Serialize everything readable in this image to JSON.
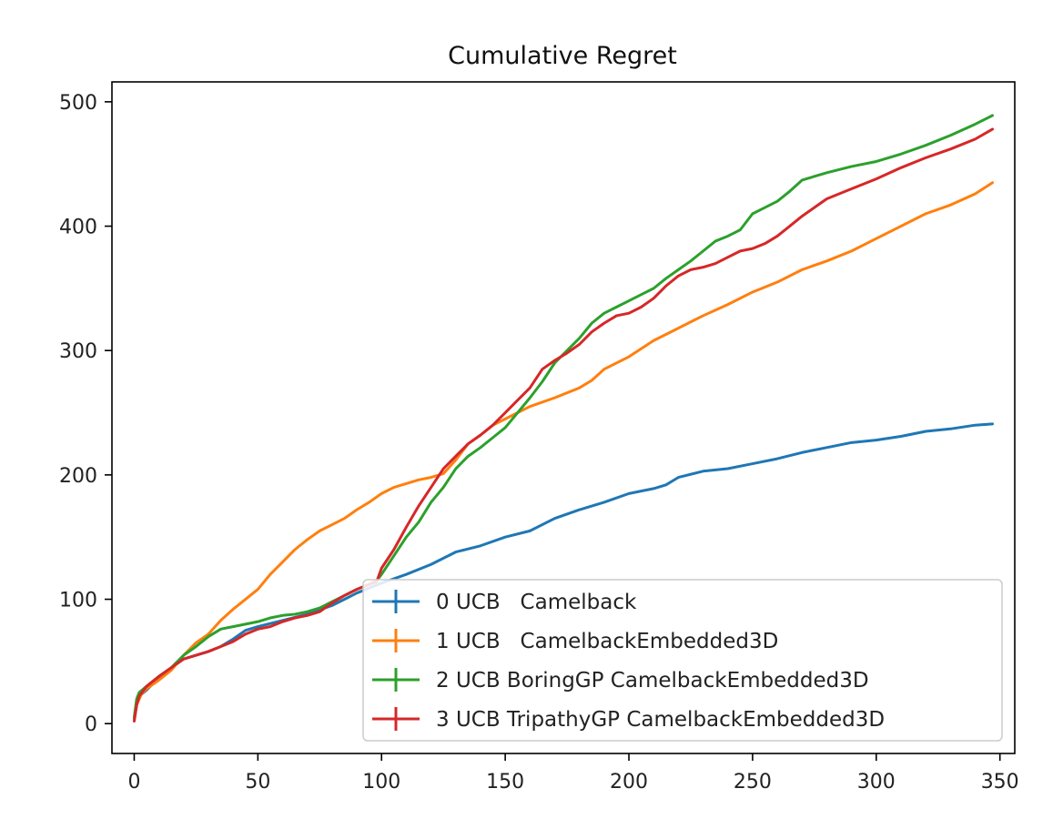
{
  "chart_data": {
    "type": "line",
    "title": "Cumulative Regret",
    "xlabel": "",
    "ylabel": "",
    "xlim": [
      -9,
      356
    ],
    "ylim": [
      -24,
      516
    ],
    "xticks": [
      0,
      50,
      100,
      150,
      200,
      250,
      300,
      350
    ],
    "yticks": [
      0,
      100,
      200,
      300,
      400,
      500
    ],
    "grid": false,
    "legend_position": "lower-right",
    "series": [
      {
        "name": "0 UCB   Camelback",
        "color": "#1f77b4",
        "x": [
          0,
          1,
          2,
          5,
          10,
          15,
          20,
          25,
          30,
          35,
          40,
          45,
          50,
          60,
          70,
          80,
          90,
          100,
          110,
          120,
          130,
          140,
          150,
          160,
          170,
          180,
          190,
          200,
          210,
          215,
          220,
          230,
          240,
          250,
          260,
          270,
          280,
          290,
          300,
          310,
          320,
          330,
          340,
          347
        ],
        "y": [
          3,
          15,
          22,
          27,
          37,
          45,
          52,
          55,
          58,
          62,
          68,
          75,
          78,
          83,
          88,
          95,
          105,
          113,
          120,
          128,
          138,
          143,
          150,
          155,
          165,
          172,
          178,
          185,
          189,
          192,
          198,
          203,
          205,
          209,
          213,
          218,
          222,
          226,
          228,
          231,
          235,
          237,
          240,
          241
        ]
      },
      {
        "name": "1 UCB   CamelbackEmbedded3D",
        "color": "#ff7f0e",
        "x": [
          0,
          1,
          3,
          5,
          10,
          15,
          20,
          25,
          30,
          35,
          40,
          45,
          50,
          55,
          60,
          65,
          70,
          75,
          80,
          85,
          90,
          95,
          100,
          105,
          110,
          115,
          120,
          125,
          130,
          135,
          140,
          145,
          150,
          160,
          170,
          180,
          185,
          190,
          200,
          210,
          220,
          230,
          240,
          250,
          260,
          270,
          280,
          290,
          300,
          310,
          320,
          330,
          340,
          347
        ],
        "y": [
          3,
          15,
          24,
          28,
          35,
          43,
          55,
          65,
          72,
          83,
          92,
          100,
          108,
          120,
          130,
          140,
          148,
          155,
          160,
          165,
          172,
          178,
          185,
          190,
          193,
          196,
          198,
          201,
          212,
          225,
          232,
          240,
          245,
          255,
          262,
          270,
          276,
          285,
          295,
          308,
          318,
          328,
          337,
          347,
          355,
          365,
          372,
          380,
          390,
          400,
          410,
          417,
          426,
          435
        ]
      },
      {
        "name": "2 UCB BoringGP CamelbackEmbedded3D",
        "color": "#2ca02c",
        "x": [
          0,
          1,
          2,
          5,
          10,
          15,
          20,
          25,
          30,
          35,
          40,
          45,
          50,
          55,
          60,
          65,
          70,
          75,
          80,
          85,
          90,
          95,
          98,
          100,
          105,
          110,
          115,
          120,
          125,
          130,
          135,
          140,
          145,
          150,
          155,
          160,
          165,
          170,
          175,
          180,
          185,
          190,
          195,
          200,
          205,
          210,
          215,
          220,
          225,
          230,
          235,
          240,
          245,
          250,
          255,
          260,
          265,
          270,
          275,
          280,
          290,
          300,
          310,
          320,
          330,
          340,
          347
        ],
        "y": [
          5,
          20,
          25,
          30,
          38,
          45,
          55,
          62,
          70,
          76,
          78,
          80,
          82,
          85,
          87,
          88,
          90,
          93,
          98,
          103,
          108,
          112,
          115,
          120,
          135,
          150,
          162,
          178,
          190,
          205,
          215,
          222,
          230,
          238,
          250,
          262,
          275,
          290,
          300,
          310,
          322,
          330,
          335,
          340,
          345,
          350,
          358,
          365,
          372,
          380,
          388,
          392,
          397,
          410,
          415,
          420,
          428,
          437,
          440,
          443,
          448,
          452,
          458,
          465,
          473,
          482,
          489
        ]
      },
      {
        "name": "3 UCB TripathyGP CamelbackEmbedded3D",
        "color": "#d62728",
        "x": [
          0,
          1,
          2,
          5,
          10,
          15,
          20,
          25,
          30,
          35,
          40,
          45,
          50,
          55,
          60,
          65,
          70,
          75,
          80,
          85,
          90,
          95,
          98,
          100,
          105,
          110,
          115,
          120,
          125,
          130,
          135,
          140,
          145,
          150,
          155,
          160,
          165,
          170,
          175,
          180,
          185,
          190,
          195,
          200,
          205,
          210,
          215,
          220,
          225,
          230,
          235,
          240,
          245,
          250,
          255,
          260,
          265,
          270,
          275,
          280,
          290,
          300,
          310,
          320,
          330,
          340,
          347
        ],
        "y": [
          2,
          15,
          22,
          30,
          38,
          45,
          52,
          55,
          58,
          62,
          66,
          72,
          76,
          78,
          82,
          85,
          87,
          90,
          97,
          103,
          108,
          112,
          114,
          125,
          140,
          158,
          175,
          190,
          205,
          215,
          225,
          232,
          240,
          250,
          260,
          270,
          285,
          292,
          298,
          305,
          315,
          322,
          328,
          330,
          335,
          342,
          352,
          360,
          365,
          367,
          370,
          375,
          380,
          382,
          386,
          392,
          400,
          408,
          415,
          422,
          430,
          438,
          447,
          455,
          462,
          470,
          478
        ]
      }
    ]
  }
}
